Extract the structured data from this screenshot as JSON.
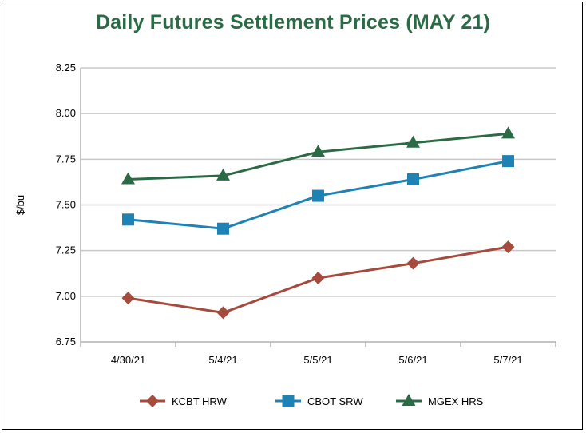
{
  "chart_data": {
    "type": "line",
    "title": "Daily Futures Settlement Prices (MAY 21)",
    "xlabel": "",
    "ylabel": "$/bu",
    "categories": [
      "4/30/21",
      "5/4/21",
      "5/5/21",
      "5/6/21",
      "5/7/21"
    ],
    "ylim": [
      6.75,
      8.25
    ],
    "yticks": [
      "6.75",
      "7.00",
      "7.25",
      "7.50",
      "7.75",
      "8.00",
      "8.25"
    ],
    "grid": true,
    "legend_position": "bottom",
    "series": [
      {
        "name": "KCBT HRW",
        "values": [
          6.99,
          6.91,
          7.1,
          7.18,
          7.27
        ],
        "color": "#A64A3E",
        "marker": "diamond"
      },
      {
        "name": "CBOT SRW",
        "values": [
          7.42,
          7.37,
          7.55,
          7.64,
          7.74
        ],
        "color": "#1E82B4",
        "marker": "square"
      },
      {
        "name": "MGEX HRS",
        "values": [
          7.64,
          7.66,
          7.79,
          7.84,
          7.89
        ],
        "color": "#2A6B45",
        "marker": "triangle"
      }
    ]
  },
  "colors": {
    "title": "#2A6B45",
    "grid": "#C8C8C8",
    "axis": "#A0A0A0"
  }
}
